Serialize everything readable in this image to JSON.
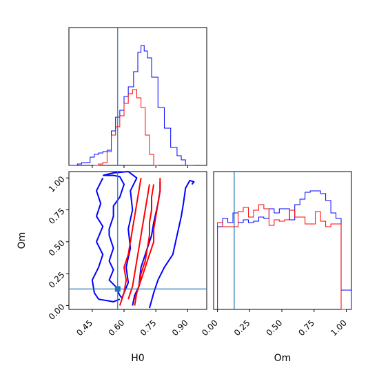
{
  "chart_data": {
    "type": "corner",
    "parameters": [
      "H0",
      "Om"
    ],
    "truth": {
      "H0": 0.57,
      "Om": 0.13
    },
    "colors": {
      "run_a": "#0000ff",
      "run_b": "#ff0000",
      "truth": "#1f77b4",
      "frame": "#000000"
    },
    "panels": [
      {
        "id": "h0-marginal",
        "type": "histogram",
        "parameter": "H0",
        "xlim": [
          0.34,
          0.99
        ],
        "x_ticks": [
          0.45,
          0.6,
          0.75,
          0.9
        ],
        "y_ticks_shown": false,
        "series": [
          {
            "color": "#0000ff",
            "step_edges": [
              0.34,
              0.38,
              0.4,
              0.42,
              0.44,
              0.46,
              0.48,
              0.5,
              0.52,
              0.54,
              0.56,
              0.58,
              0.6,
              0.62,
              0.645,
              0.665,
              0.68,
              0.695,
              0.71,
              0.73,
              0.76,
              0.79,
              0.82,
              0.85,
              0.87,
              0.89,
              0.93
            ],
            "heights": [
              0,
              0.01,
              0.02,
              0.02,
              0.06,
              0.08,
              0.09,
              0.1,
              0.11,
              0.25,
              0.35,
              0.4,
              0.5,
              0.57,
              0.68,
              0.82,
              0.87,
              0.83,
              0.78,
              0.64,
              0.42,
              0.27,
              0.13,
              0.07,
              0.04,
              0
            ]
          },
          {
            "color": "#ff0000",
            "step_edges": [
              0.46,
              0.48,
              0.5,
              0.52,
              0.54,
              0.56,
              0.58,
              0.6,
              0.62,
              0.64,
              0.66,
              0.68,
              0.7,
              0.72,
              0.74,
              0.76
            ],
            "heights": [
              0,
              0.01,
              0.02,
              0.1,
              0.22,
              0.28,
              0.36,
              0.45,
              0.52,
              0.55,
              0.49,
              0.42,
              0.22,
              0.08,
              0
            ]
          }
        ]
      },
      {
        "id": "om-marginal",
        "type": "histogram",
        "parameter": "Om",
        "xlim": [
          -0.03,
          1.04
        ],
        "x_ticks": [
          0.0,
          0.25,
          0.5,
          0.75,
          1.0
        ],
        "x_tick_labels": [
          "0.00",
          "0.25",
          "0.50",
          "0.75",
          "1.00"
        ],
        "y_ticks_shown": false,
        "series": [
          {
            "color": "#0000ff",
            "step_edges": [
              0.0,
              0.04,
              0.08,
              0.12,
              0.16,
              0.2,
              0.24,
              0.28,
              0.32,
              0.36,
              0.4,
              0.44,
              0.48,
              0.52,
              0.56,
              0.6,
              0.64,
              0.68,
              0.72,
              0.76,
              0.8,
              0.84,
              0.88,
              0.92,
              0.96,
              1.0,
              1.04
            ],
            "heights": [
              0.6,
              0.66,
              0.63,
              0.7,
              0.63,
              0.65,
              0.63,
              0.64,
              0.67,
              0.66,
              0.73,
              0.7,
              0.73,
              0.73,
              0.65,
              0.76,
              0.8,
              0.85,
              0.86,
              0.86,
              0.84,
              0.79,
              0.7,
              0.66,
              0.14,
              0.14
            ]
          },
          {
            "color": "#ff0000",
            "step_edges": [
              0.0,
              0.04,
              0.08,
              0.12,
              0.16,
              0.2,
              0.24,
              0.28,
              0.32,
              0.36,
              0.4,
              0.44,
              0.48,
              0.52,
              0.56,
              0.6,
              0.64,
              0.68,
              0.72,
              0.76,
              0.8,
              0.84,
              0.88,
              0.92,
              0.96,
              1.0
            ],
            "heights": [
              0.63,
              0.6,
              0.6,
              0.6,
              0.71,
              0.74,
              0.67,
              0.72,
              0.76,
              0.73,
              0.61,
              0.65,
              0.64,
              0.65,
              0.72,
              0.67,
              0.67,
              0.62,
              0.62,
              0.71,
              0.64,
              0.6,
              0.62,
              0.62,
              0.0
            ]
          }
        ]
      },
      {
        "id": "h0-om-2d",
        "type": "contour",
        "x_parameter": "H0",
        "y_parameter": "Om",
        "xlim": [
          0.34,
          0.99
        ],
        "ylim": [
          -0.03,
          1.05
        ],
        "x_ticks": [
          0.45,
          0.6,
          0.75,
          0.9
        ],
        "x_tick_labels": [
          "0.45",
          "0.60",
          "0.75",
          "0.90"
        ],
        "y_ticks": [
          0.0,
          0.25,
          0.5,
          0.75,
          1.0
        ],
        "y_tick_labels": [
          "0.00",
          "0.25",
          "0.50",
          "0.75",
          "1.00"
        ],
        "xlabel": "H0",
        "ylabel": "Om",
        "contours": [
          {
            "color": "#0000ff",
            "level": "outer",
            "points": [
              [
                0.5,
                1.02
              ],
              [
                0.55,
                1.02
              ],
              [
                0.58,
                1.01
              ],
              [
                0.6,
                0.95
              ],
              [
                0.58,
                0.85
              ],
              [
                0.55,
                0.78
              ],
              [
                0.55,
                0.7
              ],
              [
                0.53,
                0.6
              ],
              [
                0.53,
                0.55
              ],
              [
                0.55,
                0.45
              ],
              [
                0.53,
                0.35
              ],
              [
                0.55,
                0.28
              ],
              [
                0.53,
                0.2
              ],
              [
                0.56,
                0.15
              ],
              [
                0.58,
                0.08
              ],
              [
                0.59,
                0.06
              ],
              [
                0.6,
                0.1
              ],
              [
                0.62,
                0.18
              ],
              [
                0.61,
                0.3
              ],
              [
                0.63,
                0.45
              ],
              [
                0.62,
                0.6
              ],
              [
                0.64,
                0.75
              ],
              [
                0.63,
                0.9
              ],
              [
                0.66,
                1.0
              ],
              [
                0.62,
                1.05
              ],
              [
                0.55,
                1.04
              ],
              [
                0.5,
                1.02
              ]
            ]
          },
          {
            "color": "#0000ff",
            "level": "outer-side",
            "points": [
              [
                0.72,
                -0.02
              ],
              [
                0.74,
                0.1
              ],
              [
                0.76,
                0.2
              ],
              [
                0.79,
                0.3
              ],
              [
                0.83,
                0.4
              ],
              [
                0.85,
                0.55
              ],
              [
                0.87,
                0.7
              ],
              [
                0.88,
                0.8
              ],
              [
                0.89,
                0.92
              ],
              [
                0.91,
                0.98
              ],
              [
                0.93,
                0.97
              ],
              [
                0.92,
                0.95
              ]
            ]
          },
          {
            "color": "#0000ff",
            "level": "outer-left",
            "points": [
              [
                0.5,
                1.0
              ],
              [
                0.47,
                0.9
              ],
              [
                0.49,
                0.8
              ],
              [
                0.47,
                0.7
              ],
              [
                0.5,
                0.62
              ],
              [
                0.47,
                0.5
              ],
              [
                0.5,
                0.4
              ],
              [
                0.48,
                0.3
              ],
              [
                0.45,
                0.2
              ],
              [
                0.46,
                0.1
              ],
              [
                0.48,
                0.05
              ],
              [
                0.55,
                0.03
              ],
              [
                0.58,
                0.05
              ]
            ]
          },
          {
            "color": "#0000ff",
            "level": "inner",
            "points": [
              [
                0.64,
                0.0
              ],
              [
                0.65,
                0.08
              ],
              [
                0.67,
                0.15
              ],
              [
                0.68,
                0.3
              ],
              [
                0.71,
                0.45
              ],
              [
                0.73,
                0.55
              ],
              [
                0.74,
                0.65
              ],
              [
                0.76,
                0.8
              ],
              [
                0.77,
                0.9
              ],
              [
                0.77,
                0.97
              ]
            ]
          },
          {
            "color": "#ff0000",
            "level": "outer",
            "points": [
              [
                0.58,
                0.0
              ],
              [
                0.6,
                0.1
              ],
              [
                0.61,
                0.2
              ],
              [
                0.6,
                0.3
              ],
              [
                0.62,
                0.4
              ],
              [
                0.63,
                0.5
              ],
              [
                0.64,
                0.6
              ],
              [
                0.65,
                0.7
              ],
              [
                0.66,
                0.8
              ],
              [
                0.67,
                0.9
              ],
              [
                0.68,
                1.0
              ]
            ]
          },
          {
            "color": "#ff0000",
            "level": "outer",
            "points": [
              [
                0.65,
                0.0
              ],
              [
                0.66,
                0.1
              ],
              [
                0.68,
                0.2
              ],
              [
                0.7,
                0.3
              ],
              [
                0.72,
                0.4
              ],
              [
                0.74,
                0.5
              ],
              [
                0.74,
                0.6
              ],
              [
                0.75,
                0.7
              ],
              [
                0.76,
                0.8
              ],
              [
                0.77,
                0.9
              ],
              [
                0.77,
                1.0
              ]
            ]
          },
          {
            "color": "#ff0000",
            "level": "inner",
            "points": [
              [
                0.62,
                0.05
              ],
              [
                0.64,
                0.15
              ],
              [
                0.65,
                0.25
              ],
              [
                0.66,
                0.35
              ],
              [
                0.67,
                0.45
              ],
              [
                0.68,
                0.55
              ],
              [
                0.69,
                0.65
              ],
              [
                0.7,
                0.75
              ],
              [
                0.71,
                0.85
              ],
              [
                0.72,
                0.95
              ]
            ]
          },
          {
            "color": "#ff0000",
            "level": "inner",
            "points": [
              [
                0.65,
                0.05
              ],
              [
                0.67,
                0.15
              ],
              [
                0.68,
                0.25
              ],
              [
                0.7,
                0.35
              ],
              [
                0.71,
                0.45
              ],
              [
                0.72,
                0.55
              ],
              [
                0.72,
                0.65
              ],
              [
                0.73,
                0.75
              ],
              [
                0.73,
                0.85
              ],
              [
                0.74,
                0.95
              ]
            ]
          }
        ]
      }
    ]
  }
}
